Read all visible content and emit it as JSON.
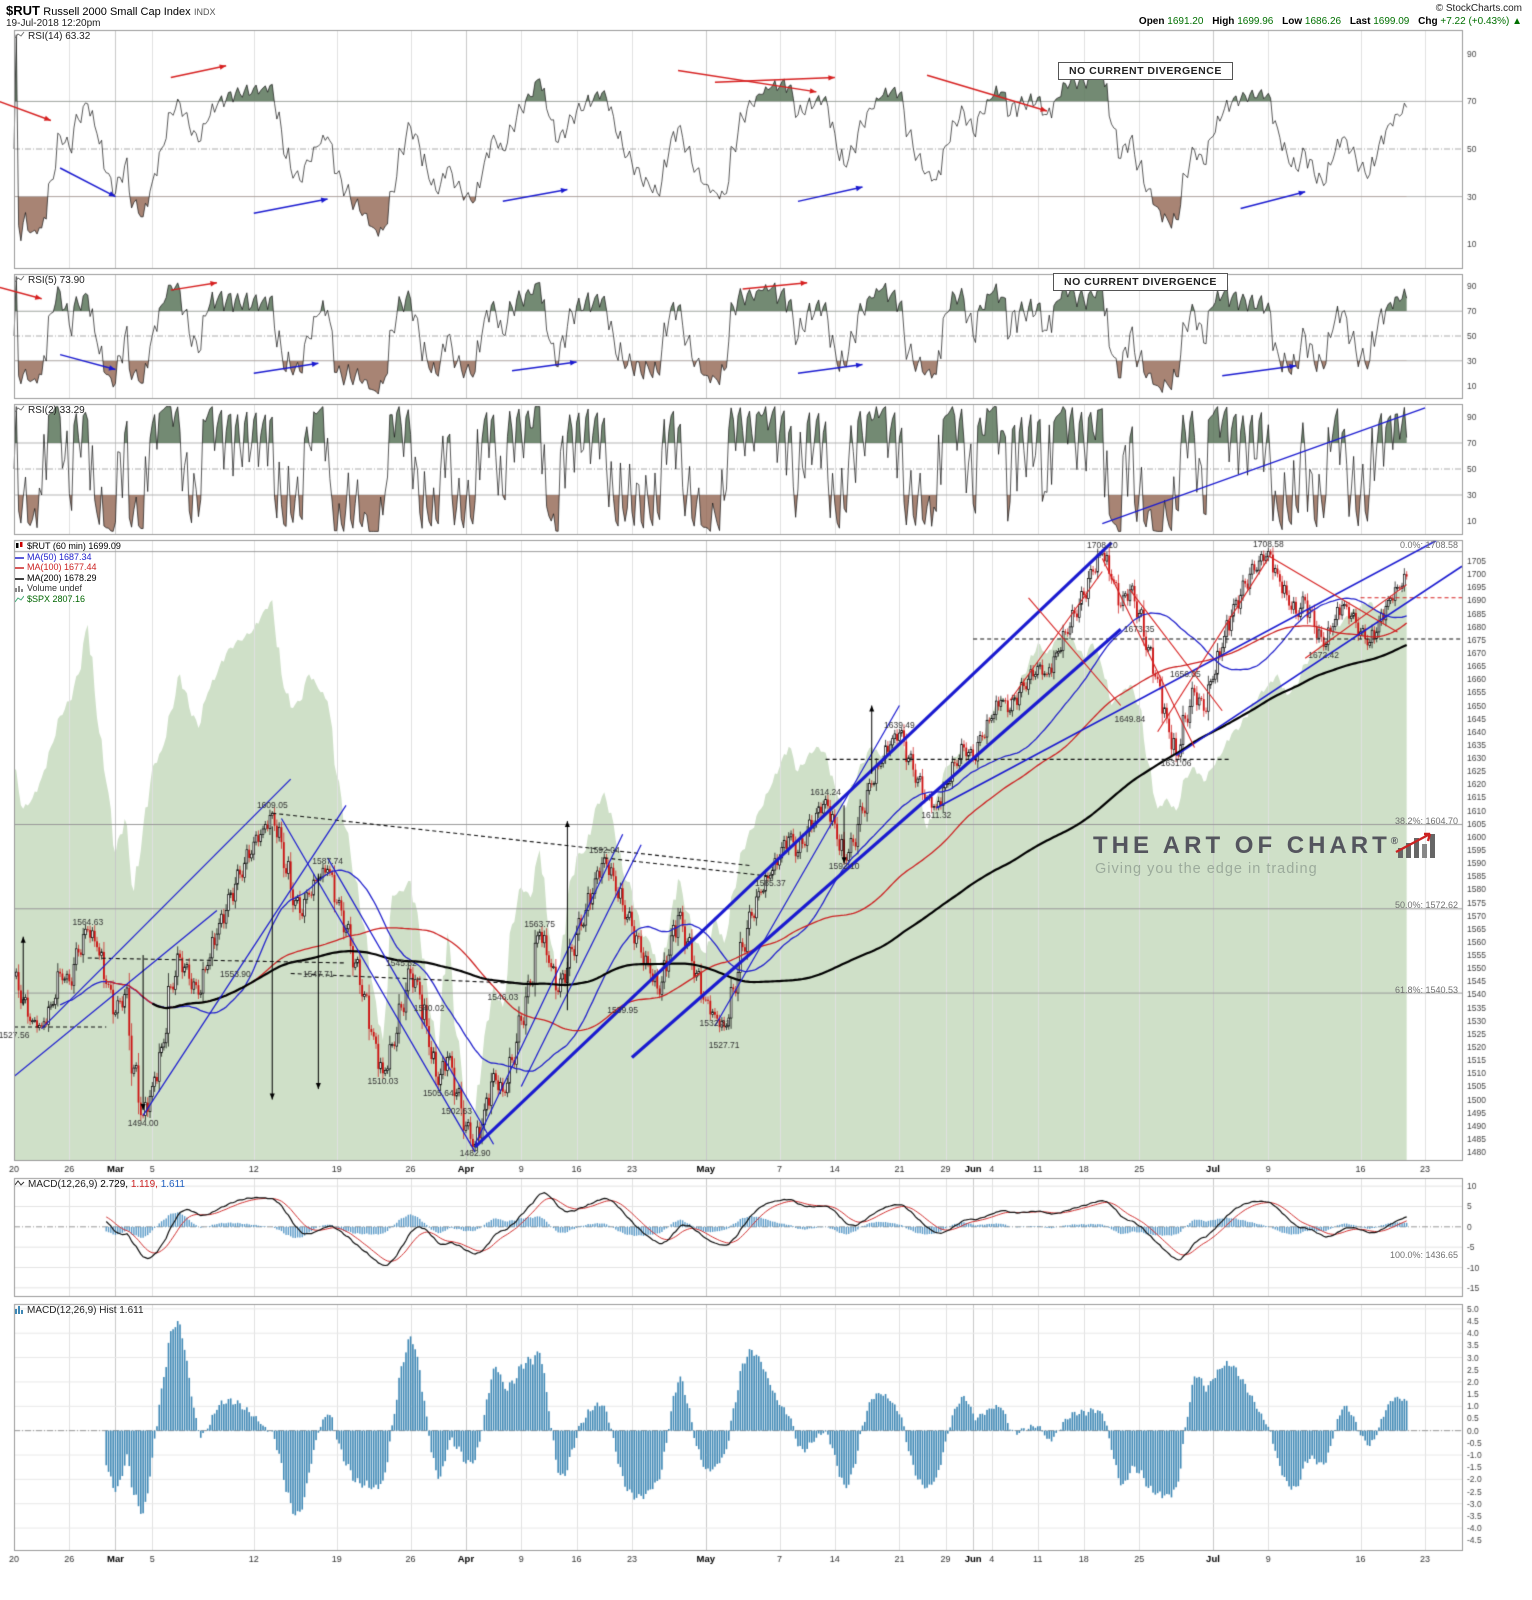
{
  "header": {
    "symbol": "$RUT",
    "name": "Russell 2000 Small Cap Index",
    "exchange": "INDX",
    "datetime": "19-Jul-2018 12:20pm",
    "copyright": "© StockCharts.com",
    "quote": {
      "open_label": "Open",
      "open": "1691.20",
      "high_label": "High",
      "high": "1699.96",
      "low_label": "Low",
      "low": "1686.26",
      "last_label": "Last",
      "last": "1699.09",
      "chg_label": "Chg",
      "chg": "+7.22 (+0.43%) ▲"
    }
  },
  "panels": {
    "rsi14": {
      "legend": "RSI(14) 63.32",
      "note": "NO CURRENT DIVERGENCE"
    },
    "rsi5": {
      "legend": "RSI(5) 73.90",
      "note": "NO CURRENT DIVERGENCE"
    },
    "rsi2": {
      "legend": "RSI(2) 33.29"
    },
    "main": {
      "legend_symbol": "$RUT (60 min) 1699.09",
      "legend_ma50": "MA(50) 1687.34",
      "legend_ma100": "MA(100) 1677.44",
      "legend_ma200": "MA(200) 1678.29",
      "legend_volume": "Volume undef",
      "legend_spx": "$SPX 2807.16"
    },
    "macd": {
      "legend": "MACD(12,26,9)",
      "v1": "2.729,",
      "v2": "1.119,",
      "v3": "1.611"
    },
    "hist": {
      "legend": "MACD(12,26,9) Hist 1.611"
    }
  },
  "watermark": {
    "title": "THE ART OF CHART",
    "reg": "®",
    "tagline": "Giving you the edge in trading"
  },
  "fib_labels": {
    "f0": "0.0%: 1708.58",
    "f382": "38.2%: 1604.70",
    "f50": "50.0%: 1572.62",
    "f618": "61.8%: 1540.53",
    "f100": "100.0%: 1436.65"
  },
  "chart_data": {
    "type": "candlestick-multi-panel",
    "symbol": "$RUT",
    "timeframe": "60 min",
    "last": 1699.09,
    "x_ticks": [
      {
        "i": 0,
        "label": "20"
      },
      {
        "i": 6,
        "label": "26"
      },
      {
        "i": 11,
        "label": "Mar",
        "b": 1
      },
      {
        "i": 15,
        "label": "5"
      },
      {
        "i": 26,
        "label": "12"
      },
      {
        "i": 35,
        "label": "19"
      },
      {
        "i": 43,
        "label": "26"
      },
      {
        "i": 49,
        "label": "Apr",
        "b": 1
      },
      {
        "i": 55,
        "label": "9"
      },
      {
        "i": 61,
        "label": "16"
      },
      {
        "i": 67,
        "label": "23"
      },
      {
        "i": 75,
        "label": "May",
        "b": 1
      },
      {
        "i": 83,
        "label": "7"
      },
      {
        "i": 89,
        "label": "14"
      },
      {
        "i": 96,
        "label": "21"
      },
      {
        "i": 101,
        "label": "29"
      },
      {
        "i": 104,
        "label": "Jun",
        "b": 1
      },
      {
        "i": 106,
        "label": "4"
      },
      {
        "i": 111,
        "label": "11"
      },
      {
        "i": 116,
        "label": "18"
      },
      {
        "i": 122,
        "label": "25"
      },
      {
        "i": 130,
        "label": "Jul",
        "b": 1
      },
      {
        "i": 136,
        "label": "9"
      },
      {
        "i": 146,
        "label": "16"
      },
      {
        "i": 153,
        "label": "23"
      }
    ],
    "price": {
      "ylim": [
        1477,
        1713
      ],
      "tick_step": 5,
      "closes": [
        1547,
        1538,
        1530,
        1528,
        1536,
        1548,
        1545,
        1556,
        1564.6,
        1558,
        1544,
        1533,
        1540,
        1512,
        1494,
        1505,
        1520,
        1543,
        1554,
        1546,
        1540,
        1551,
        1563,
        1572,
        1582,
        1590,
        1598,
        1603,
        1609,
        1598,
        1580,
        1571,
        1578,
        1584,
        1587.7,
        1575,
        1565,
        1552,
        1540,
        1524,
        1510,
        1521,
        1535,
        1548,
        1540,
        1520,
        1505.6,
        1516,
        1502.6,
        1490,
        1482.9,
        1496,
        1510,
        1503,
        1515,
        1530,
        1544,
        1563.8,
        1552,
        1541,
        1550,
        1563,
        1572,
        1584,
        1592,
        1585,
        1574,
        1566,
        1556,
        1548,
        1540,
        1555,
        1570,
        1560,
        1548,
        1538,
        1532.3,
        1527.7,
        1542,
        1558,
        1570,
        1579,
        1585.4,
        1592,
        1600,
        1594,
        1602,
        1609,
        1614.2,
        1605,
        1592.1,
        1598,
        1610,
        1620,
        1628,
        1635,
        1639.5,
        1630,
        1622,
        1615,
        1611.3,
        1620,
        1628,
        1634,
        1630,
        1638,
        1645,
        1652,
        1648,
        1655,
        1660,
        1665,
        1662,
        1670,
        1678,
        1685,
        1692,
        1701,
        1708.1,
        1698,
        1688,
        1694,
        1685,
        1672,
        1660,
        1645,
        1631.1,
        1645,
        1655,
        1648,
        1660,
        1672,
        1684,
        1692,
        1700,
        1705,
        1708.6,
        1700,
        1692,
        1685,
        1690,
        1680,
        1672.4,
        1680,
        1688,
        1684,
        1678,
        1674,
        1682,
        1690,
        1695,
        1699.1
      ]
    },
    "spx": {
      "last": 2807.16,
      "range": [
        2530,
        2830
      ],
      "values": [
        2720,
        2700,
        2705,
        2715,
        2730,
        2745,
        2752,
        2765,
        2789,
        2744,
        2713,
        2678,
        2695,
        2660,
        2691,
        2720,
        2728,
        2747,
        2765,
        2749,
        2739,
        2756,
        2765,
        2775,
        2780,
        2783,
        2787,
        2795,
        2801,
        2765,
        2749,
        2752,
        2765,
        2758,
        2752,
        2716,
        2690,
        2666,
        2643,
        2612,
        2588,
        2658,
        2660,
        2665,
        2640,
        2605,
        2581,
        2640,
        2590,
        2560,
        2553,
        2590,
        2614,
        2604,
        2644,
        2662,
        2657,
        2680,
        2640,
        2613,
        2656,
        2677,
        2680,
        2700,
        2708,
        2693,
        2670,
        2660,
        2640,
        2635,
        2618,
        2640,
        2666,
        2650,
        2635,
        2630,
        2648,
        2635,
        2660,
        2680,
        2690,
        2700,
        2710,
        2720,
        2730,
        2718,
        2725,
        2730,
        2727,
        2711,
        2700,
        2712,
        2722,
        2730,
        2725,
        2730,
        2733,
        2725,
        2715,
        2690,
        2705,
        2720,
        2725,
        2730,
        2722,
        2735,
        2746,
        2754,
        2748,
        2760,
        2770,
        2780,
        2775,
        2782,
        2786,
        2780,
        2773,
        2780,
        2768,
        2750,
        2755,
        2760,
        2750,
        2722,
        2700,
        2705,
        2699,
        2715,
        2720,
        2713,
        2720,
        2727,
        2736,
        2740,
        2748,
        2755,
        2760,
        2765,
        2755,
        2760,
        2770,
        2775,
        2780,
        2785,
        2790,
        2795,
        2798,
        2800,
        2795,
        2800,
        2805,
        2807.2
      ]
    },
    "oscillators": {
      "rsi14": {
        "period": 14,
        "last": 63.32,
        "ticks": [
          90,
          70,
          50,
          30,
          10
        ]
      },
      "rsi5": {
        "period": 5,
        "last": 73.9,
        "ticks": [
          90,
          70,
          50,
          30,
          10
        ]
      },
      "rsi2": {
        "period": 2,
        "last": 33.29,
        "ticks": [
          90,
          70,
          50,
          30,
          10
        ]
      }
    },
    "macd": {
      "fast": 12,
      "slow": 26,
      "signal": 9,
      "last": [
        2.729,
        1.119,
        1.611
      ],
      "ylim": [
        -17,
        12
      ],
      "ticks": [
        10,
        5,
        0,
        -5,
        -10,
        -15
      ]
    },
    "hist": {
      "last": 1.611,
      "ylim": [
        -4.9,
        5.2
      ],
      "tick_range": [
        5.0,
        -4.5
      ],
      "tick_step": 0.5
    },
    "fib_levels": [
      {
        "pct": 0.0,
        "value": 1708.58
      },
      {
        "pct": 38.2,
        "value": 1604.7
      },
      {
        "pct": 50.0,
        "value": 1572.62
      },
      {
        "pct": 61.8,
        "value": 1540.53
      },
      {
        "pct": 100.0,
        "value": 1436.65
      }
    ],
    "annotations": [
      [
        118,
        1708.1,
        "a",
        "1708.10"
      ],
      [
        136,
        1708.6,
        "a",
        "1708.58"
      ],
      [
        28,
        1609,
        "a",
        "1609.05"
      ],
      [
        34,
        1587.7,
        "a",
        "1587.74"
      ],
      [
        8,
        1564.6,
        "a",
        "1564.63"
      ],
      [
        64,
        1592,
        "a",
        "1592.04"
      ],
      [
        57,
        1563.8,
        "a",
        "1563.75"
      ],
      [
        88,
        1614.2,
        "a",
        "1614.24"
      ],
      [
        96,
        1639.5,
        "a",
        "1639.49"
      ],
      [
        100,
        1611.3,
        "b",
        "1611.32"
      ],
      [
        90,
        1592.1,
        "b",
        "1592.10"
      ],
      [
        82,
        1585.4,
        "b",
        "1585.37"
      ],
      [
        24,
        1551,
        "b",
        "1553.90"
      ],
      [
        33,
        1551,
        "b",
        "1547.71"
      ],
      [
        42,
        1549,
        "a",
        "1545.32"
      ],
      [
        45,
        1538,
        "b",
        "1540.02"
      ],
      [
        53,
        1542,
        "b",
        "1546.03"
      ],
      [
        66,
        1537,
        "b",
        "1539.95"
      ],
      [
        76,
        1532.3,
        "b",
        "1532.31"
      ],
      [
        77,
        1527.7,
        "bb",
        "1527.71"
      ],
      [
        0,
        1527.6,
        "b",
        "1527.56"
      ],
      [
        40,
        1510,
        "b",
        "1510.03"
      ],
      [
        46,
        1505.6,
        "b",
        "1505.64"
      ],
      [
        48,
        1502.6,
        "bb",
        "1502.63"
      ],
      [
        14,
        1494,
        "b",
        "1494.00"
      ],
      [
        50,
        1482.9,
        "b",
        "1482.90"
      ],
      [
        122,
        1676,
        "a",
        "1673.35"
      ],
      [
        127,
        1659,
        "a",
        "1656.05"
      ],
      [
        121,
        1648,
        "b",
        "1649.84"
      ],
      [
        126,
        1631.1,
        "b",
        "1631.06"
      ],
      [
        142,
        1672.4,
        "b",
        "1672.42"
      ]
    ],
    "trendlines": [
      [
        50,
        1482,
        119,
        1712,
        3.2,
        "blue"
      ],
      [
        67,
        1516,
        120,
        1679,
        3.2,
        "blue"
      ],
      [
        3,
        1527,
        30,
        1622,
        1.2,
        "blue"
      ],
      [
        14,
        1494,
        36,
        1612,
        1.2,
        "blue"
      ],
      [
        -2,
        1503,
        22,
        1572,
        1.2,
        "blue"
      ],
      [
        29,
        1607,
        50,
        1480,
        1.2,
        "blue"
      ],
      [
        34,
        1592,
        52,
        1483,
        1.2,
        "blue"
      ],
      [
        50,
        1483,
        66,
        1601,
        1.2,
        "blue"
      ],
      [
        55,
        1505,
        68,
        1597,
        1.2,
        "blue"
      ],
      [
        76,
        1528,
        96,
        1650,
        1.2,
        "blue"
      ],
      [
        100,
        1611,
        157,
        1718,
        1.6,
        "blue"
      ],
      [
        126,
        1631,
        157,
        1703,
        1.6,
        "blue"
      ],
      [
        108,
        1652,
        118,
        1701,
        1.1,
        "red"
      ],
      [
        110,
        1691,
        120,
        1650,
        1.1,
        "red"
      ],
      [
        118,
        1706,
        128,
        1634,
        1.1,
        "red"
      ],
      [
        121,
        1694,
        131,
        1648,
        1.1,
        "red"
      ],
      [
        124,
        1640,
        136,
        1706,
        1.1,
        "red"
      ],
      [
        136,
        1707,
        150,
        1678,
        1.1,
        "red"
      ],
      [
        140,
        1668,
        151,
        1696,
        1.1,
        "red"
      ]
    ],
    "dashed_lines": [
      [
        28,
        1609,
        80,
        1589,
        "black"
      ],
      [
        64,
        1592,
        82,
        1585,
        "black"
      ],
      [
        104,
        1675.3,
        157,
        1675.3,
        "black"
      ],
      [
        88,
        1629.5,
        132,
        1629.5,
        "black"
      ],
      [
        8,
        1553.9,
        36,
        1552,
        "black"
      ],
      [
        30,
        1548,
        56,
        1544,
        "black"
      ],
      [
        0,
        1527.6,
        10,
        1527.6,
        "black"
      ],
      [
        146,
        1691,
        157,
        1691,
        "red"
      ]
    ],
    "varrows": [
      [
        14,
        1555,
        1496
      ],
      [
        28,
        1604,
        1500
      ],
      [
        33,
        1586,
        1504
      ],
      [
        60,
        1534,
        1606
      ],
      [
        93,
        1624,
        1650
      ],
      [
        90,
        1612,
        1590
      ],
      [
        1,
        1536,
        1562
      ]
    ],
    "rsi_arrows": {
      "rsi14": [
        [
          -3,
          72,
          4,
          62,
          "red"
        ],
        [
          17,
          80,
          23,
          85,
          "red"
        ],
        [
          72,
          83,
          87,
          74,
          "red"
        ],
        [
          76,
          78,
          89,
          80,
          "red"
        ],
        [
          99,
          81,
          112,
          66,
          "red"
        ],
        [
          5,
          42,
          11,
          30,
          "blue"
        ],
        [
          26,
          23,
          34,
          29,
          "blue"
        ],
        [
          53,
          28,
          60,
          33,
          "blue"
        ],
        [
          85,
          28,
          92,
          34,
          "blue"
        ],
        [
          133,
          25,
          140,
          32,
          "blue"
        ]
      ],
      "rsi5": [
        [
          -3,
          92,
          3,
          80,
          "red"
        ],
        [
          17,
          87,
          22,
          93,
          "red"
        ],
        [
          79,
          88,
          86,
          93,
          "red"
        ],
        [
          5,
          35,
          11,
          23,
          "blue"
        ],
        [
          26,
          20,
          33,
          28,
          "blue"
        ],
        [
          54,
          22,
          61,
          29,
          "blue"
        ],
        [
          85,
          20,
          92,
          27,
          "blue"
        ],
        [
          131,
          18,
          139,
          26,
          "blue"
        ]
      ],
      "rsi2": [
        [
          118,
          8,
          153,
          97,
          "blue",
          "line"
        ]
      ]
    }
  }
}
